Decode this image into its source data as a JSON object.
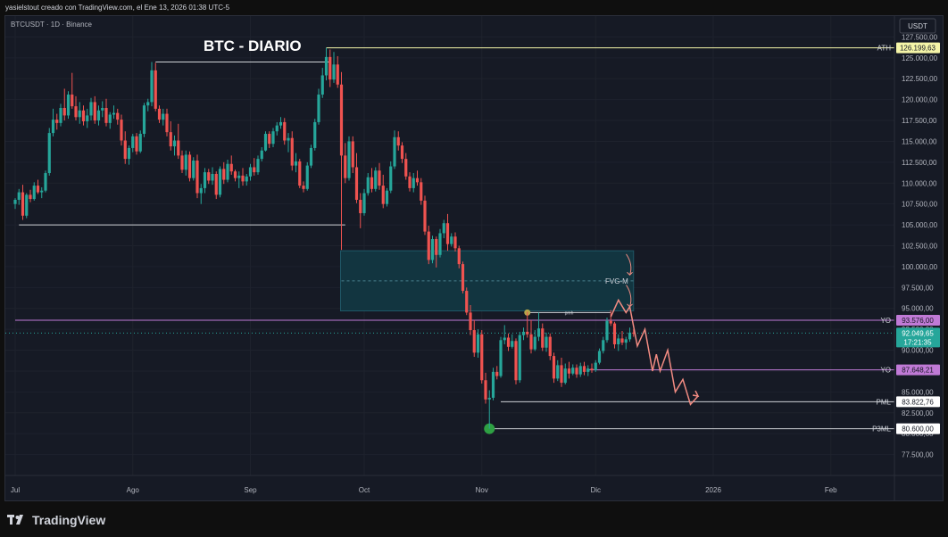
{
  "caption": "yasielstout creado con TradingView.com, el Ene 13, 2026 01:38 UTC-5",
  "footer": {
    "brand": "TradingView"
  },
  "colors": {
    "up": "#26a69a",
    "down": "#ef5350",
    "bg": "#161a25",
    "fvg": "#123540",
    "ath": "#f5f5a8",
    "purple": "#c07ad6",
    "projection": "#f28b82"
  },
  "chart_data": {
    "type": "candlestick",
    "symbol_line": "BTCUSDT · 1D · Binance",
    "title": "BTC - DIARIO",
    "currency": "USDT",
    "ylim": [
      75000,
      130000
    ],
    "y_ticks": [
      "77.500,00",
      "80.000,00",
      "82.500,00",
      "85.000,00",
      "87.500,00",
      "90.000,00",
      "92.500,00",
      "95.000,00",
      "97.500,00",
      "100.000,00",
      "102.500,00",
      "105.000,00",
      "107.500,00",
      "110.000,00",
      "112.500,00",
      "115.000,00",
      "117.500,00",
      "120.000,00",
      "122.500,00",
      "125.000,00",
      "127.500,00"
    ],
    "x_ticks": [
      {
        "label": "Jul",
        "day": 0
      },
      {
        "label": "Ago",
        "day": 31
      },
      {
        "label": "Sep",
        "day": 62
      },
      {
        "label": "Oct",
        "day": 92
      },
      {
        "label": "Nov",
        "day": 123
      },
      {
        "label": "Dic",
        "day": 153
      },
      {
        "label": "2026",
        "day": 184
      },
      {
        "label": "Feb",
        "day": 215
      }
    ],
    "candles": [
      [
        0,
        107500,
        108200,
        106900,
        108000
      ],
      [
        1,
        108000,
        109300,
        107400,
        108900
      ],
      [
        2,
        108900,
        109800,
        105600,
        106100
      ],
      [
        3,
        106100,
        108800,
        105800,
        108600
      ],
      [
        4,
        108600,
        109200,
        107700,
        108100
      ],
      [
        5,
        108100,
        110100,
        107900,
        109700
      ],
      [
        6,
        109700,
        110400,
        108700,
        108900
      ],
      [
        7,
        108900,
        109500,
        108200,
        109100
      ],
      [
        8,
        109100,
        111500,
        108900,
        111200
      ],
      [
        9,
        111200,
        116600,
        110900,
        116000
      ],
      [
        10,
        116000,
        118900,
        115600,
        117600
      ],
      [
        11,
        117600,
        118300,
        116400,
        117200
      ],
      [
        12,
        117200,
        119500,
        116800,
        119000
      ],
      [
        13,
        119000,
        121300,
        117500,
        118100
      ],
      [
        14,
        118100,
        121000,
        117700,
        120600
      ],
      [
        15,
        120600,
        123200,
        118900,
        119200
      ],
      [
        16,
        119200,
        120400,
        117500,
        117900
      ],
      [
        17,
        117900,
        119700,
        117100,
        118700
      ],
      [
        18,
        118700,
        119300,
        116900,
        117400
      ],
      [
        19,
        117400,
        118900,
        116600,
        118100
      ],
      [
        20,
        118100,
        120200,
        117500,
        119700
      ],
      [
        21,
        119700,
        120400,
        117100,
        117500
      ],
      [
        22,
        117500,
        119300,
        116900,
        118700
      ],
      [
        23,
        118700,
        119800,
        117900,
        119000
      ],
      [
        24,
        119000,
        120100,
        116800,
        117200
      ],
      [
        25,
        117200,
        118500,
        116500,
        118200
      ],
      [
        26,
        118200,
        119300,
        117700,
        118400
      ],
      [
        27,
        118400,
        118900,
        117000,
        117600
      ],
      [
        28,
        117600,
        118200,
        114500,
        115100
      ],
      [
        29,
        115100,
        116200,
        112300,
        112900
      ],
      [
        30,
        112900,
        114500,
        112200,
        114200
      ],
      [
        31,
        114200,
        115900,
        113700,
        115600
      ],
      [
        32,
        115600,
        116000,
        113400,
        113800
      ],
      [
        33,
        113800,
        116300,
        113600,
        115900
      ],
      [
        34,
        115900,
        119600,
        115500,
        119300
      ],
      [
        35,
        119300,
        120100,
        118600,
        119700
      ],
      [
        36,
        119700,
        124500,
        119200,
        123500
      ],
      [
        37,
        123500,
        124400,
        118600,
        118900
      ],
      [
        38,
        118900,
        119300,
        117200,
        117600
      ],
      [
        39,
        117600,
        118900,
        116900,
        118300
      ],
      [
        40,
        118300,
        118900,
        115600,
        116100
      ],
      [
        41,
        116100,
        117400,
        113900,
        114400
      ],
      [
        42,
        114400,
        115700,
        113300,
        115100
      ],
      [
        43,
        115100,
        117100,
        112900,
        113300
      ],
      [
        44,
        113300,
        113900,
        111200,
        111600
      ],
      [
        45,
        111600,
        113900,
        110900,
        113400
      ],
      [
        46,
        113400,
        113800,
        110200,
        110600
      ],
      [
        47,
        110600,
        113100,
        110300,
        112700
      ],
      [
        48,
        112700,
        113400,
        108200,
        108800
      ],
      [
        49,
        108800,
        109900,
        107500,
        109400
      ],
      [
        50,
        109400,
        111800,
        108800,
        111300
      ],
      [
        51,
        111300,
        111700,
        109900,
        110300
      ],
      [
        52,
        110300,
        111900,
        109800,
        111100
      ],
      [
        53,
        111100,
        111400,
        108100,
        108600
      ],
      [
        54,
        108600,
        112000,
        108300,
        111700
      ],
      [
        55,
        111700,
        112500,
        109900,
        110400
      ],
      [
        56,
        110400,
        112800,
        110100,
        112300
      ],
      [
        57,
        112300,
        113300,
        111000,
        111400
      ],
      [
        58,
        111400,
        111600,
        110200,
        110600
      ],
      [
        59,
        110600,
        111400,
        109400,
        110900
      ],
      [
        60,
        110900,
        111800,
        109700,
        110200
      ],
      [
        61,
        110200,
        111100,
        109700,
        110800
      ],
      [
        62,
        110800,
        112300,
        110300,
        111900
      ],
      [
        63,
        111900,
        113000,
        110900,
        111300
      ],
      [
        64,
        111300,
        113300,
        111000,
        112900
      ],
      [
        65,
        112900,
        114300,
        112600,
        113900
      ],
      [
        66,
        113900,
        116200,
        113800,
        115900
      ],
      [
        67,
        115900,
        116200,
        114200,
        114700
      ],
      [
        68,
        114700,
        116600,
        114300,
        116200
      ],
      [
        69,
        116200,
        117300,
        115700,
        116900
      ],
      [
        70,
        116900,
        117900,
        116500,
        117300
      ],
      [
        71,
        117300,
        117800,
        114600,
        115100
      ],
      [
        72,
        115100,
        116000,
        113700,
        115400
      ],
      [
        73,
        115400,
        116200,
        111500,
        112100
      ],
      [
        74,
        112100,
        113600,
        111300,
        112600
      ],
      [
        75,
        112600,
        112900,
        109400,
        109700
      ],
      [
        76,
        109700,
        110200,
        108900,
        109300
      ],
      [
        77,
        109300,
        112500,
        109100,
        112100
      ],
      [
        78,
        112100,
        114600,
        111800,
        114200
      ],
      [
        79,
        114200,
        117700,
        113900,
        117300
      ],
      [
        80,
        117300,
        121300,
        117000,
        120600
      ],
      [
        81,
        120600,
        123800,
        120200,
        122900
      ],
      [
        82,
        122900,
        126200,
        122300,
        125100
      ],
      [
        83,
        125100,
        126000,
        121500,
        122400
      ],
      [
        84,
        122400,
        125700,
        122000,
        124200
      ],
      [
        85,
        124200,
        125200,
        121400,
        121800
      ],
      [
        86,
        121800,
        123300,
        102000,
        113300
      ],
      [
        87,
        113300,
        114800,
        110000,
        110600
      ],
      [
        88,
        110600,
        115600,
        110300,
        115000
      ],
      [
        89,
        115000,
        115600,
        111200,
        111900
      ],
      [
        90,
        111900,
        113600,
        107600,
        108000
      ],
      [
        91,
        108000,
        108800,
        104600,
        106400
      ],
      [
        92,
        106400,
        109300,
        106100,
        108800
      ],
      [
        93,
        108800,
        111200,
        108500,
        110700
      ],
      [
        94,
        110700,
        111800,
        108900,
        109300
      ],
      [
        95,
        109300,
        111900,
        109000,
        111500
      ],
      [
        96,
        111500,
        112400,
        109200,
        109700
      ],
      [
        97,
        109700,
        111000,
        107000,
        107500
      ],
      [
        98,
        107500,
        109400,
        107200,
        109100
      ],
      [
        99,
        109100,
        112600,
        108800,
        112000
      ],
      [
        100,
        112000,
        116300,
        111700,
        115500
      ],
      [
        101,
        115500,
        116200,
        113900,
        114500
      ],
      [
        102,
        114500,
        114900,
        112400,
        112900
      ],
      [
        103,
        112900,
        113600,
        110400,
        110800
      ],
      [
        104,
        110800,
        111300,
        109000,
        109400
      ],
      [
        105,
        109400,
        111200,
        108900,
        110600
      ],
      [
        106,
        110600,
        111500,
        109700,
        110100
      ],
      [
        107,
        110100,
        110600,
        107400,
        107900
      ],
      [
        108,
        107900,
        108500,
        103800,
        104200
      ],
      [
        109,
        104200,
        104900,
        100300,
        100800
      ],
      [
        110,
        100800,
        103700,
        100400,
        103300
      ],
      [
        111,
        103300,
        103600,
        99900,
        101400
      ],
      [
        112,
        101400,
        104500,
        101100,
        104000
      ],
      [
        113,
        104000,
        105600,
        103400,
        105200
      ],
      [
        114,
        105200,
        106300,
        101900,
        102700
      ],
      [
        115,
        102700,
        104000,
        102400,
        103600
      ],
      [
        116,
        103600,
        104100,
        101800,
        102200
      ],
      [
        117,
        102200,
        102500,
        99800,
        100300
      ],
      [
        118,
        100300,
        100600,
        96800,
        97100
      ],
      [
        119,
        97100,
        97500,
        94200,
        94500
      ],
      [
        120,
        94500,
        95400,
        91800,
        92400
      ],
      [
        121,
        92400,
        93600,
        89200,
        89700
      ],
      [
        122,
        89700,
        92500,
        89100,
        91900
      ],
      [
        123,
        91900,
        92400,
        86000,
        86400
      ],
      [
        124,
        86400,
        87300,
        83600,
        84100
      ],
      [
        125,
        84100,
        85200,
        80600,
        84300
      ],
      [
        126,
        84300,
        87900,
        84000,
        87400
      ],
      [
        127,
        87400,
        88100,
        86500,
        86900
      ],
      [
        128,
        86900,
        91600,
        86700,
        91200
      ],
      [
        129,
        91200,
        93000,
        90700,
        91500
      ],
      [
        130,
        91500,
        92000,
        89900,
        90400
      ],
      [
        131,
        90400,
        91900,
        90200,
        91100
      ],
      [
        132,
        91100,
        91400,
        85900,
        86400
      ],
      [
        133,
        86400,
        92200,
        86100,
        91800
      ],
      [
        134,
        91800,
        92700,
        91200,
        92200
      ],
      [
        135,
        92200,
        94600,
        91500,
        91900
      ],
      [
        136,
        91900,
        93600,
        89600,
        90100
      ],
      [
        137,
        90100,
        92400,
        89900,
        91600
      ],
      [
        138,
        91600,
        94500,
        91100,
        92600
      ],
      [
        139,
        92600,
        93200,
        89900,
        90300
      ],
      [
        140,
        90300,
        92100,
        89800,
        91600
      ],
      [
        141,
        91600,
        92000,
        88800,
        89300
      ],
      [
        142,
        89300,
        89700,
        86100,
        86600
      ],
      [
        143,
        86600,
        88800,
        86300,
        88200
      ],
      [
        144,
        88200,
        89100,
        85600,
        86100
      ],
      [
        145,
        86100,
        88400,
        85900,
        87800
      ],
      [
        146,
        87800,
        88600,
        86600,
        87200
      ],
      [
        147,
        87200,
        88300,
        87000,
        87900
      ],
      [
        148,
        87900,
        88300,
        86700,
        87100
      ],
      [
        149,
        87100,
        88500,
        86800,
        88100
      ],
      [
        150,
        88100,
        88600,
        87000,
        87400
      ],
      [
        151,
        87400,
        88200,
        86900,
        87800
      ],
      [
        152,
        87800,
        88400,
        87300,
        87600
      ],
      [
        153,
        87600,
        88800,
        87400,
        88500
      ],
      [
        154,
        88500,
        90200,
        88300,
        89900
      ],
      [
        155,
        89900,
        91600,
        89600,
        91200
      ],
      [
        156,
        91200,
        93900,
        90900,
        93500
      ],
      [
        157,
        93500,
        94800,
        92900,
        93200
      ],
      [
        158,
        93200,
        93400,
        90200,
        90700
      ],
      [
        159,
        90700,
        91900,
        89900,
        91400
      ],
      [
        160,
        91400,
        92300,
        90600,
        90900
      ],
      [
        161,
        90900,
        91600,
        90100,
        91300
      ],
      [
        162,
        91300,
        92700,
        91000,
        92100
      ],
      [
        163,
        92100,
        92500,
        91600,
        92050
      ]
    ],
    "fvg_zone": {
      "label": "FVG-M",
      "day_from": 86,
      "day_to": 163,
      "y_low": 94700,
      "y_high": 101900,
      "mid": 98300
    },
    "levels": [
      {
        "label": "ATH",
        "value": 126199.63,
        "value_label": "126.199,63",
        "day_from": 82
      },
      {
        "label": "YO",
        "value": 93576.0,
        "value_label": "93.576,00",
        "day_from": 0
      },
      {
        "label": "YO",
        "value": 87648.21,
        "value_label": "87.648,21",
        "day_from": 151
      },
      {
        "label": "PML",
        "value": 83822.76,
        "value_label": "83.822,76",
        "day_from": 128
      },
      {
        "label": "P3ML",
        "value": 80600.0,
        "value_label": "80.600,00",
        "day_from": 125
      }
    ],
    "swing_lines": [
      {
        "day_from": 1,
        "day_to": 87,
        "value": 105000
      },
      {
        "day_from": 37,
        "day_to": 83,
        "value": 124500
      }
    ],
    "pmh": {
      "label": "pmh",
      "value": 94500,
      "day_from": 135,
      "day_to": 157
    },
    "last_price": {
      "value_label": "92.049,65",
      "countdown": "17:21:35",
      "value": 92050
    },
    "projection": [
      [
        157,
        94000
      ],
      [
        159,
        96000
      ],
      [
        161,
        94500
      ],
      [
        162,
        95200
      ],
      [
        164,
        90500
      ],
      [
        166,
        92500
      ],
      [
        168,
        87500
      ],
      [
        169,
        89500
      ],
      [
        170,
        87500
      ],
      [
        172,
        90000
      ],
      [
        174,
        85000
      ],
      [
        176,
        86500
      ],
      [
        178,
        83500
      ],
      [
        180,
        84500
      ]
    ],
    "arrows": [
      {
        "day": 162,
        "from": 101500,
        "to": 99000
      },
      {
        "day": 162,
        "from": 97800,
        "to": 95200
      }
    ]
  }
}
